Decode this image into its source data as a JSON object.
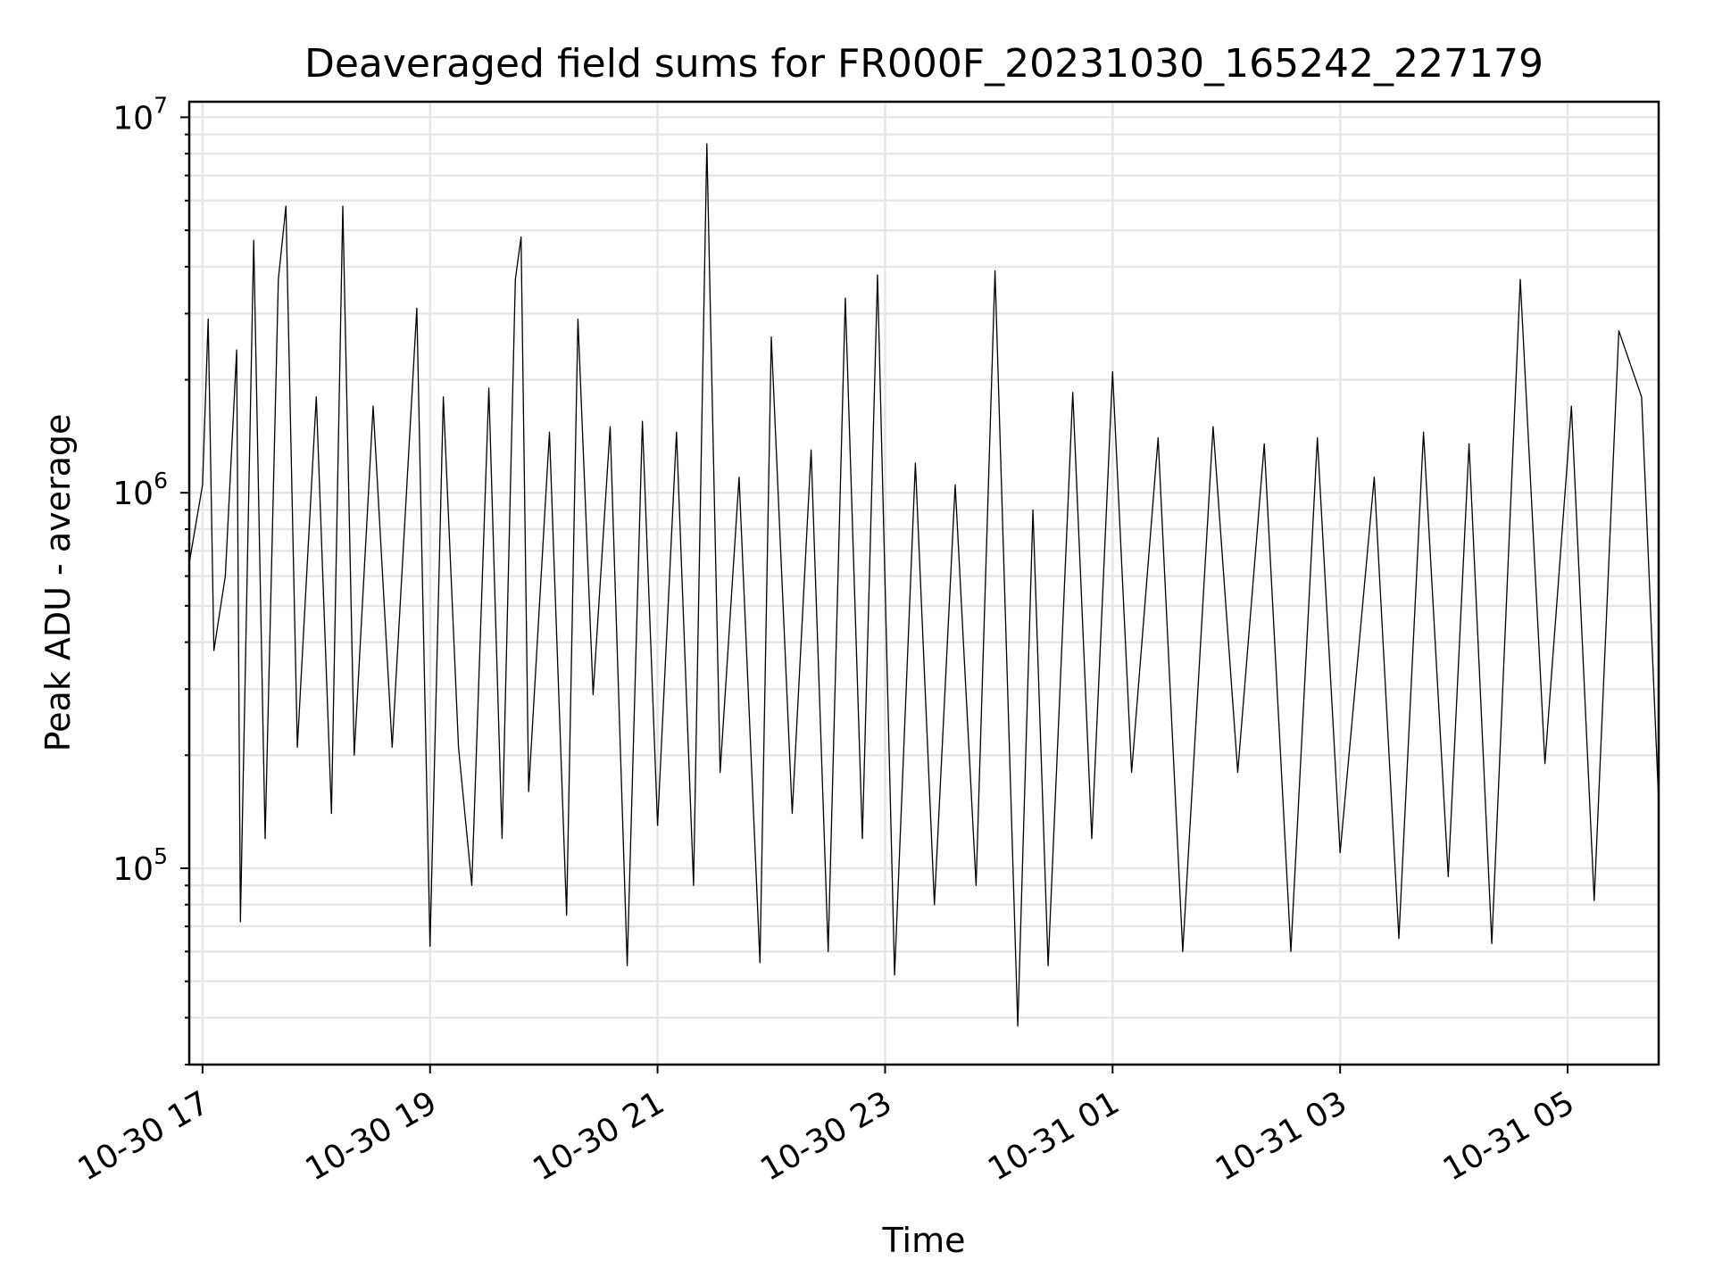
{
  "chart_data": {
    "type": "line",
    "title": "Deaveraged field sums for FR000F_20231030_165242_227179",
    "xlabel": "Time",
    "ylabel": "Peak ADU - average",
    "y_scale": "log",
    "ylim": [
      30000,
      11000000
    ],
    "xlim": [
      "2023-10-30 16:53",
      "2023-10-31 05:48"
    ],
    "grid": true,
    "line_color": "#000000",
    "x_tick_labels": [
      "10-30 17",
      "10-30 19",
      "10-30 21",
      "10-30 23",
      "10-31 01",
      "10-31 03",
      "10-31 05"
    ],
    "x_tick_values": [
      "2023-10-30 17:00",
      "2023-10-30 19:00",
      "2023-10-30 21:00",
      "2023-10-30 23:00",
      "2023-10-31 01:00",
      "2023-10-31 03:00",
      "2023-10-31 05:00"
    ],
    "y_ticks": [
      {
        "base": "10",
        "exp": "5",
        "value": 100000
      },
      {
        "base": "10",
        "exp": "6",
        "value": 1000000
      },
      {
        "base": "10",
        "exp": "7",
        "value": 10000000
      }
    ],
    "series": [
      {
        "points": [
          [
            "2023-10-30 16:53",
            650000
          ],
          [
            "2023-10-30 17:00",
            1050000
          ],
          [
            "2023-10-30 17:03",
            2900000
          ],
          [
            "2023-10-30 17:06",
            380000
          ],
          [
            "2023-10-30 17:12",
            600000
          ],
          [
            "2023-10-30 17:18",
            2400000
          ],
          [
            "2023-10-30 17:20",
            72000
          ],
          [
            "2023-10-30 17:27",
            4700000
          ],
          [
            "2023-10-30 17:33",
            120000
          ],
          [
            "2023-10-30 17:40",
            3700000
          ],
          [
            "2023-10-30 17:44",
            5800000
          ],
          [
            "2023-10-30 17:50",
            210000
          ],
          [
            "2023-10-30 18:00",
            1800000
          ],
          [
            "2023-10-30 18:08",
            140000
          ],
          [
            "2023-10-30 18:14",
            5800000
          ],
          [
            "2023-10-30 18:20",
            200000
          ],
          [
            "2023-10-30 18:30",
            1700000
          ],
          [
            "2023-10-30 18:40",
            210000
          ],
          [
            "2023-10-30 18:53",
            3100000
          ],
          [
            "2023-10-30 19:00",
            62000
          ],
          [
            "2023-10-30 19:07",
            1800000
          ],
          [
            "2023-10-30 19:15",
            210000
          ],
          [
            "2023-10-30 19:22",
            90000
          ],
          [
            "2023-10-30 19:31",
            1900000
          ],
          [
            "2023-10-30 19:38",
            120000
          ],
          [
            "2023-10-30 19:45",
            3700000
          ],
          [
            "2023-10-30 19:48",
            4800000
          ],
          [
            "2023-10-30 19:52",
            160000
          ],
          [
            "2023-10-30 20:03",
            1450000
          ],
          [
            "2023-10-30 20:12",
            75000
          ],
          [
            "2023-10-30 20:18",
            2900000
          ],
          [
            "2023-10-30 20:26",
            290000
          ],
          [
            "2023-10-30 20:35",
            1500000
          ],
          [
            "2023-10-30 20:44",
            55000
          ],
          [
            "2023-10-30 20:52",
            1550000
          ],
          [
            "2023-10-30 21:00",
            130000
          ],
          [
            "2023-10-30 21:10",
            1450000
          ],
          [
            "2023-10-30 21:19",
            90000
          ],
          [
            "2023-10-30 21:26",
            8500000
          ],
          [
            "2023-10-30 21:33",
            180000
          ],
          [
            "2023-10-30 21:43",
            1100000
          ],
          [
            "2023-10-30 21:54",
            56000
          ],
          [
            "2023-10-30 22:00",
            2600000
          ],
          [
            "2023-10-30 22:11",
            140000
          ],
          [
            "2023-10-30 22:21",
            1300000
          ],
          [
            "2023-10-30 22:30",
            60000
          ],
          [
            "2023-10-30 22:39",
            3300000
          ],
          [
            "2023-10-30 22:48",
            120000
          ],
          [
            "2023-10-30 22:56",
            3800000
          ],
          [
            "2023-10-30 23:05",
            52000
          ],
          [
            "2023-10-30 23:16",
            1200000
          ],
          [
            "2023-10-30 23:26",
            80000
          ],
          [
            "2023-10-30 23:37",
            1050000
          ],
          [
            "2023-10-30 23:48",
            90000
          ],
          [
            "2023-10-30 23:58",
            3900000
          ],
          [
            "2023-10-31 00:10",
            38000
          ],
          [
            "2023-10-31 00:18",
            900000
          ],
          [
            "2023-10-31 00:26",
            55000
          ],
          [
            "2023-10-31 00:39",
            1850000
          ],
          [
            "2023-10-31 00:49",
            120000
          ],
          [
            "2023-10-31 01:00",
            2100000
          ],
          [
            "2023-10-31 01:10",
            180000
          ],
          [
            "2023-10-31 01:24",
            1400000
          ],
          [
            "2023-10-31 01:37",
            60000
          ],
          [
            "2023-10-31 01:53",
            1500000
          ],
          [
            "2023-10-31 02:06",
            180000
          ],
          [
            "2023-10-31 02:20",
            1350000
          ],
          [
            "2023-10-31 02:34",
            60000
          ],
          [
            "2023-10-31 02:48",
            1400000
          ],
          [
            "2023-10-31 03:00",
            110000
          ],
          [
            "2023-10-31 03:18",
            1100000
          ],
          [
            "2023-10-31 03:31",
            65000
          ],
          [
            "2023-10-31 03:44",
            1450000
          ],
          [
            "2023-10-31 03:57",
            95000
          ],
          [
            "2023-10-31 04:08",
            1350000
          ],
          [
            "2023-10-31 04:20",
            63000
          ],
          [
            "2023-10-31 04:35",
            3700000
          ],
          [
            "2023-10-31 04:48",
            190000
          ],
          [
            "2023-10-31 05:02",
            1700000
          ],
          [
            "2023-10-31 05:14",
            82000
          ],
          [
            "2023-10-31 05:27",
            2700000
          ],
          [
            "2023-10-31 05:39",
            1800000
          ],
          [
            "2023-10-31 05:48",
            150000
          ]
        ]
      }
    ]
  }
}
